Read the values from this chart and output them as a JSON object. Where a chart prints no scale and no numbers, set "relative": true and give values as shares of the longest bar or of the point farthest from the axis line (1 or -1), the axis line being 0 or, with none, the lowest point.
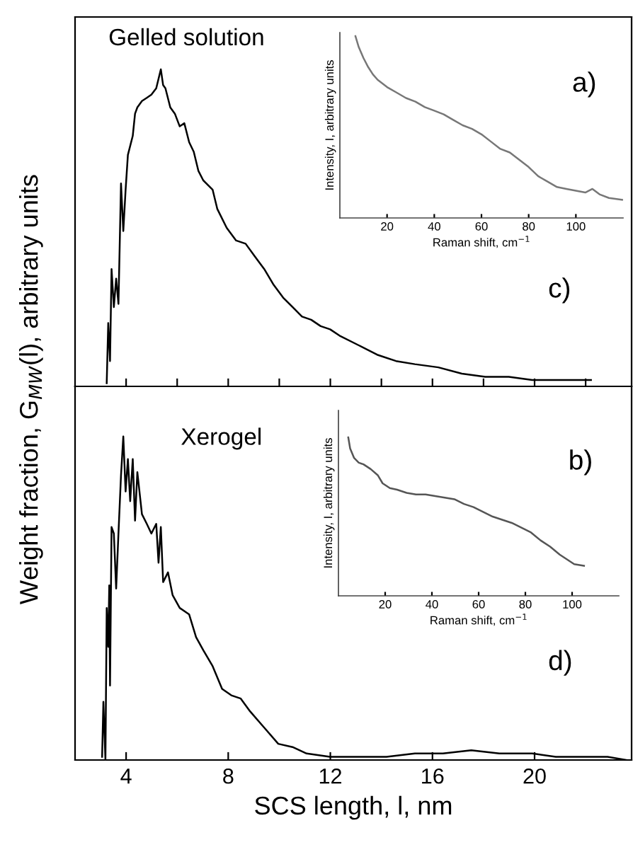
{
  "chart_data": [
    {
      "type": "line",
      "relative": true,
      "tick_labels": false,
      "xlim": [
        2,
        23.8
      ],
      "xticks": [
        {
          "value": 4,
          "label": null
        },
        {
          "value": 6,
          "label": null
        },
        {
          "value": 8,
          "label": null
        },
        {
          "value": 10,
          "label": null
        },
        {
          "value": 12,
          "label": null
        },
        {
          "value": 14,
          "label": null
        },
        {
          "value": 16,
          "label": null
        },
        {
          "value": 18,
          "label": null
        },
        {
          "value": 20,
          "label": null
        },
        {
          "value": 22,
          "label": null
        }
      ],
      "ylabel": "Weight fraction, G$_{MW}$(l), arbitrary units",
      "annotations": [
        "Gelled solution",
        "c)"
      ],
      "series": [
        {
          "color": "#000000",
          "x": [
            3.24,
            3.3,
            3.37,
            3.43,
            3.52,
            3.61,
            3.7,
            3.8,
            3.89,
            3.98,
            4.07,
            4.26,
            4.35,
            4.44,
            4.62,
            4.81,
            4.99,
            5.18,
            5.36,
            5.45,
            5.54,
            5.73,
            5.91,
            6.1,
            6.28,
            6.47,
            6.65,
            6.83,
            7.02,
            7.39,
            7.57,
            7.94,
            8.31,
            8.68,
            9.04,
            9.41,
            9.78,
            10.15,
            10.52,
            10.89,
            11.25,
            11.62,
            11.99,
            12.36,
            13.1,
            13.83,
            14.57,
            15.31,
            16.23,
            17.15,
            18.07,
            18.99,
            19.91,
            20.83,
            22.21
          ],
          "values": [
            0.01,
            0.2,
            0.08,
            0.37,
            0.25,
            0.34,
            0.26,
            0.64,
            0.49,
            0.62,
            0.73,
            0.79,
            0.86,
            0.88,
            0.9,
            0.91,
            0.92,
            0.94,
            1.0,
            0.95,
            0.94,
            0.88,
            0.86,
            0.82,
            0.83,
            0.77,
            0.74,
            0.68,
            0.65,
            0.62,
            0.56,
            0.5,
            0.46,
            0.45,
            0.41,
            0.37,
            0.32,
            0.28,
            0.25,
            0.22,
            0.21,
            0.19,
            0.18,
            0.16,
            0.13,
            0.1,
            0.08,
            0.07,
            0.06,
            0.04,
            0.03,
            0.03,
            0.02,
            0.02,
            0.02
          ]
        }
      ]
    },
    {
      "type": "line",
      "relative": true,
      "tick_labels": "x",
      "xlim": [
        0,
        120
      ],
      "xticks": [
        20,
        40,
        60,
        80,
        100
      ],
      "xlabel": "Raman shift, cm$^{−1}$",
      "ylabel": "Intensity, I, arbitrary units",
      "annotations": [
        "a)"
      ],
      "series": [
        {
          "color": "#777777",
          "x": [
            6.6,
            8,
            10,
            12,
            14,
            16,
            20,
            24,
            28,
            32,
            36,
            40,
            44,
            48,
            52,
            56,
            60,
            64,
            68,
            72,
            76,
            80,
            84,
            88,
            92,
            96,
            100,
            104,
            107,
            110,
            114,
            119.6
          ],
          "values": [
            1.0,
            0.94,
            0.88,
            0.83,
            0.79,
            0.76,
            0.72,
            0.69,
            0.66,
            0.64,
            0.61,
            0.59,
            0.57,
            0.54,
            0.51,
            0.49,
            0.46,
            0.42,
            0.38,
            0.36,
            0.32,
            0.28,
            0.23,
            0.2,
            0.17,
            0.16,
            0.15,
            0.14,
            0.16,
            0.13,
            0.11,
            0.1
          ]
        }
      ]
    },
    {
      "type": "line",
      "relative": true,
      "tick_labels": "x",
      "xlim": [
        2,
        23.8
      ],
      "xticks": [
        4,
        8,
        12,
        16,
        20
      ],
      "xlabel": "SCS length, l, nm",
      "annotations": [
        "Xerogel",
        "d)"
      ],
      "series": [
        {
          "color": "#000000",
          "x": [
            3.06,
            3.11,
            3.19,
            3.24,
            3.3,
            3.34,
            3.37,
            3.43,
            3.52,
            3.61,
            3.7,
            3.8,
            3.89,
            3.98,
            4.07,
            4.16,
            4.26,
            4.35,
            4.44,
            4.62,
            4.81,
            4.99,
            5.18,
            5.27,
            5.36,
            5.45,
            5.64,
            5.82,
            6.1,
            6.47,
            6.74,
            7.02,
            7.39,
            7.76,
            8.12,
            8.49,
            8.86,
            9.41,
            9.96,
            10.52,
            11.07,
            11.99,
            13.1,
            14.2,
            15.31,
            16.41,
            17.52,
            18.62,
            19.91,
            20.83,
            21.57,
            22.86,
            23.59
          ],
          "values": [
            0.01,
            0.18,
            0.0,
            0.47,
            0.35,
            0.54,
            0.23,
            0.72,
            0.7,
            0.53,
            0.7,
            0.88,
            1.0,
            0.83,
            0.93,
            0.8,
            0.93,
            0.74,
            0.89,
            0.76,
            0.73,
            0.7,
            0.73,
            0.61,
            0.72,
            0.55,
            0.58,
            0.51,
            0.47,
            0.45,
            0.38,
            0.34,
            0.29,
            0.22,
            0.2,
            0.19,
            0.15,
            0.1,
            0.05,
            0.04,
            0.02,
            0.01,
            0.01,
            0.01,
            0.02,
            0.02,
            0.03,
            0.02,
            0.02,
            0.01,
            0.01,
            0.01,
            0.0
          ]
        }
      ]
    },
    {
      "type": "line",
      "relative": true,
      "tick_labels": "x",
      "xlim": [
        0,
        120
      ],
      "xticks": [
        20,
        40,
        60,
        80,
        100
      ],
      "xlabel": "Raman shift, cm$^{−1}$",
      "ylabel": "Intensity, I, arbitrary units",
      "annotations": [
        "b)"
      ],
      "series": [
        {
          "color": "#555555",
          "x": [
            4.2,
            5.0,
            6.7,
            8.7,
            10.7,
            13.8,
            16.9,
            18.9,
            22.0,
            25.1,
            29.2,
            33.2,
            37.3,
            41.4,
            45.5,
            49.6,
            53.7,
            57.8,
            61.9,
            66.0,
            70.1,
            74.2,
            78.3,
            82.4,
            86.5,
            90.6,
            94.7,
            97.8,
            100.9,
            105.1
          ],
          "values": [
            1.0,
            0.93,
            0.87,
            0.84,
            0.83,
            0.8,
            0.76,
            0.71,
            0.68,
            0.67,
            0.65,
            0.64,
            0.64,
            0.63,
            0.62,
            0.61,
            0.58,
            0.56,
            0.53,
            0.5,
            0.48,
            0.46,
            0.43,
            0.4,
            0.35,
            0.31,
            0.26,
            0.23,
            0.2,
            0.19
          ]
        }
      ]
    }
  ]
}
